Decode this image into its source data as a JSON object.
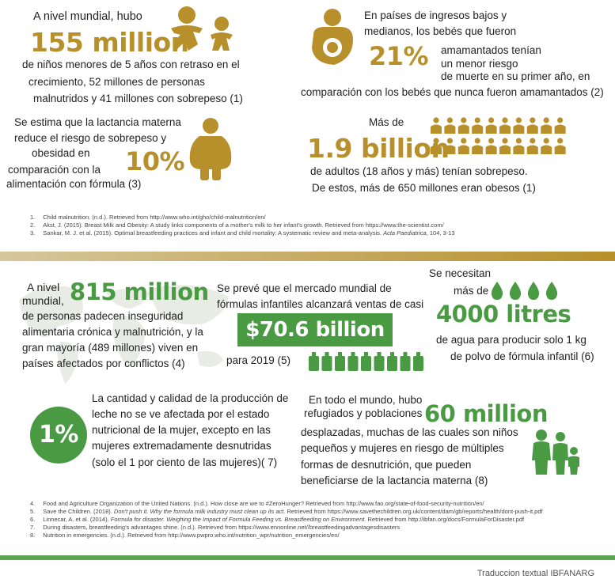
{
  "top": {
    "s1": {
      "intro": "A nivel mundial, hubo",
      "big": "155 million",
      "line1": "de niños menores de 5 años con retraso en el",
      "line2": "crecimiento, 52 millones de personas",
      "line3": "malnutridos  y 41 millones con sobrepeso  (1)"
    },
    "s2": {
      "line1": "En países de ingresos bajos y",
      "line2": "medianos, los bebés que fueron",
      "big": "21%",
      "line3": "amamantados tenían",
      "line4": "un menor riesgo",
      "line5": "de muerte en su primer año, en",
      "line6": "comparación con los bebés que nunca fueron amamantados  (2)"
    },
    "s3": {
      "line1": "Se estima que la lactancia materna",
      "line2": "reduce el riesgo de sobrepeso y",
      "line3": "obesidad en",
      "big": "10%",
      "line4": "comparación  con la",
      "line5": "alimentación con fórmula  (3)"
    },
    "s4": {
      "intro": "Más de",
      "big": "1.9 billion",
      "line1": "de adultos  (18 años y más) tenían sobrepeso.",
      "line2": "De  estos, más de 650 millones eran  obesos (1)"
    },
    "refs": [
      {
        "n": "1.",
        "text": "Child malnutrition. (n.d.). Retrieved from http://www.who.int/gho/child-malnutrition/en/"
      },
      {
        "n": "2.",
        "text": "Akst, J. (2015). Breast Milk and Obesity: A study links components of a mother's milk to her infant's growth. Retrieved from https://www.the-scientist.com/"
      },
      {
        "n": "3.",
        "pre": "Sankar, M. J. et al. (2015). Optimal breastfeeding practices and infant and child mortality: A systematic review and meta-analysis. ",
        "ital": "Acta Paediatrica",
        "post": ", 104, 3-13"
      }
    ]
  },
  "bottom": {
    "s5": {
      "intro1": "A nivel",
      "intro2": "mundial,",
      "big": "815 million",
      "line1": "de personas padecen inseguridad",
      "line2": "alimentaria crónica y malnutrición, y la",
      "line3": "gran mayoría (489 millones) viven en",
      "line4": "países afectados por conflictos  (4)"
    },
    "s6": {
      "line1": "Se prevé que el mercado mundial de",
      "line2": "fórmulas infantiles alcanzará ventas de casi",
      "big": "$70.6 billion",
      "line3": "para 2019 (5)"
    },
    "s7": {
      "line1": "Se necesitan",
      "line2": "más de",
      "big": "4000 litres",
      "line3": "de agua para producir solo 1 kg",
      "line4": "de polvo de fórmula infantil  (6)"
    },
    "s8": {
      "big": "1%",
      "line1": "La cantidad y calidad de la producción de",
      "line2": "leche no se ve afectada por el estado",
      "line3": "nutricional de la mujer, excepto en las",
      "line4": "mujeres extremadamente desnutridas",
      "line5": "(solo el 1 por ciento de las mujeres)( 7)"
    },
    "s9": {
      "line1": "En todo el mundo, hubo",
      "line2": "refugiados y poblaciones",
      "big": "60 million",
      "line3": "desplazadas, muchas de las cuales son niños",
      "line4": "pequeños y mujeres en riesgo de múltiples",
      "line5": "formas de desnutrición, que pueden",
      "line6": "beneficiarse de la lactancia materna (8)"
    },
    "refs": [
      {
        "n": "4.",
        "text": "Food and Agriculture Organization of the United Nations. (n.d.). How close are we  to #ZeroHunger? Retrieved from http://www.fao.org/state-of-food-security-nutrition/en/"
      },
      {
        "n": "5.",
        "pre": "Save the Children. (2018). ",
        "ital": "Don't push it. Why the formula milk industry must clean up its act.",
        "post": " Retrieved from https://www.savethechildren.org.uk/content/dam/gb/reports/health/dont-push-it.pdf"
      },
      {
        "n": "6.",
        "pre": "Linnecar, A. et al. (2014). ",
        "ital": "Formula for disaster. Weighing the Impact of Formula Feeding vs. Breastfeeding on Environment.",
        "post": " Retrieved from http://ibfan.org/docs/FormulaForDisaster.pdf"
      },
      {
        "n": "7.",
        "text": "During disasters, breastfeeding's advantages shine. (n.d.). Retrieved from https://www.ennonline.net//breastfeedingadvantagesdisasters"
      },
      {
        "n": "8.",
        "text": "Nutrition in emergencies. (n.d.). Retrieved from http://www.pwpro.who.int/nutrition_wpr/nutrition_emergencies/en/"
      }
    ]
  },
  "footer": {
    "credit": "Traduccion textual IBFANARG"
  },
  "colors": {
    "gold": "#b8902b",
    "green": "#4a9a44",
    "green_light": "#5aa64f"
  },
  "icons": [
    "baby-pair-icon",
    "mother-baby-icon",
    "obese-person-icon",
    "people-grid-icon",
    "world-map-icon",
    "baby-bottle-icon",
    "water-drop-icon",
    "family-icon"
  ]
}
